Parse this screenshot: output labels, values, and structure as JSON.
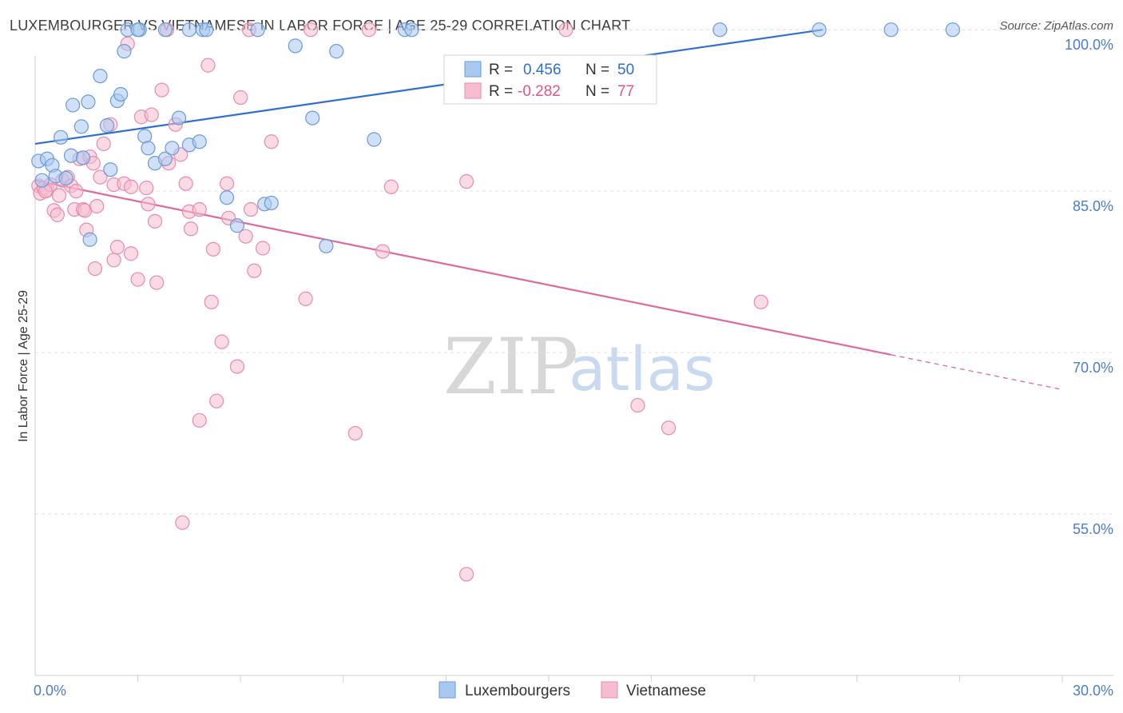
{
  "header": {
    "title": "LUXEMBOURGER VS VIETNAMESE IN LABOR FORCE | AGE 25-29 CORRELATION CHART",
    "source": "Source: ZipAtlas.com"
  },
  "watermark": {
    "zip": "ZIP",
    "atlas": "atlas"
  },
  "colors": {
    "blue_fill": "#a9c8f0",
    "blue_stroke": "#6a9ad8",
    "blue_line": "#2e6fd1",
    "pink_fill": "#f6bdd0",
    "pink_stroke": "#e98aab",
    "pink_line": "#e0689a",
    "grid": "#e3e3e3",
    "axis_tick_text": "#4a7cc9"
  },
  "legend": {
    "rows": [
      {
        "r_label": "R =",
        "r_value": "0.456",
        "n_label": "N =",
        "n_value": "50"
      },
      {
        "r_label": "R =",
        "r_value": "-0.282",
        "n_label": "N =",
        "n_value": "77"
      }
    ],
    "bottom": [
      "Luxembourgers",
      "Vietnamese"
    ]
  },
  "chart_data": {
    "type": "scatter",
    "title": "LUXEMBOURGER VS VIETNAMESE IN LABOR FORCE | AGE 25-29 CORRELATION CHART",
    "xlabel": "",
    "ylabel": "In Labor Force | Age 25-29",
    "xlim": [
      0,
      30
    ],
    "ylim": [
      40,
      101.5
    ],
    "x_tick_labels": [
      "0.0%",
      "30.0%"
    ],
    "y_ticks": [
      100,
      85,
      70,
      55
    ],
    "y_tick_labels": [
      "100.0%",
      "85.0%",
      "70.0%",
      "55.0%"
    ],
    "grid": true,
    "legend_position": "top-center",
    "series": [
      {
        "name": "Luxembourgers",
        "R": 0.456,
        "N": 50,
        "trend": {
          "x": [
            0,
            23
          ],
          "y": [
            89.4,
            100
          ]
        },
        "points": [
          [
            0.1,
            87.8
          ],
          [
            0.2,
            86.0
          ],
          [
            0.35,
            88.0
          ],
          [
            0.5,
            87.4
          ],
          [
            0.6,
            86.4
          ],
          [
            0.75,
            90.0
          ],
          [
            0.9,
            86.2
          ],
          [
            1.05,
            88.3
          ],
          [
            1.1,
            93.0
          ],
          [
            1.35,
            91.0
          ],
          [
            1.4,
            88.1
          ],
          [
            1.55,
            93.3
          ],
          [
            1.6,
            80.5
          ],
          [
            1.9,
            95.7
          ],
          [
            2.1,
            91.1
          ],
          [
            2.2,
            87.0
          ],
          [
            2.4,
            93.4
          ],
          [
            2.5,
            94.0
          ],
          [
            2.6,
            98.0
          ],
          [
            2.7,
            100.0
          ],
          [
            3.05,
            100.0
          ],
          [
            3.2,
            90.1
          ],
          [
            3.3,
            89.0
          ],
          [
            3.5,
            87.6
          ],
          [
            3.8,
            88.0
          ],
          [
            3.8,
            100.0
          ],
          [
            4.0,
            89.0
          ],
          [
            4.2,
            91.8
          ],
          [
            4.5,
            89.3
          ],
          [
            4.5,
            100.0
          ],
          [
            4.8,
            89.6
          ],
          [
            4.9,
            100.0
          ],
          [
            5.0,
            100.0
          ],
          [
            5.6,
            84.4
          ],
          [
            5.9,
            81.8
          ],
          [
            6.5,
            100.0
          ],
          [
            6.7,
            83.8
          ],
          [
            6.9,
            83.9
          ],
          [
            7.6,
            98.5
          ],
          [
            8.1,
            91.8
          ],
          [
            8.5,
            79.9
          ],
          [
            8.8,
            98.0
          ],
          [
            9.9,
            89.8
          ],
          [
            10.8,
            100.0
          ],
          [
            11.0,
            100.0
          ],
          [
            20.0,
            100.0
          ],
          [
            22.9,
            100.0
          ],
          [
            25.0,
            100.0
          ],
          [
            26.8,
            100.0
          ],
          [
            3.0,
            100.0
          ]
        ]
      },
      {
        "name": "Vietnamese",
        "R": -0.282,
        "N": 77,
        "trend": {
          "x": [
            0,
            25
          ],
          "y": [
            86.0,
            69.8
          ]
        },
        "points": [
          [
            0.1,
            85.5
          ],
          [
            0.15,
            84.8
          ],
          [
            0.25,
            85.3
          ],
          [
            0.35,
            85.1
          ],
          [
            0.45,
            85.6
          ],
          [
            0.55,
            83.2
          ],
          [
            0.65,
            82.8
          ],
          [
            0.7,
            84.6
          ],
          [
            0.8,
            86.0
          ],
          [
            0.95,
            86.3
          ],
          [
            1.05,
            85.5
          ],
          [
            1.15,
            83.3
          ],
          [
            1.2,
            85.0
          ],
          [
            1.3,
            88.0
          ],
          [
            1.4,
            83.3
          ],
          [
            1.45,
            83.2
          ],
          [
            1.5,
            81.4
          ],
          [
            1.6,
            88.2
          ],
          [
            1.7,
            87.6
          ],
          [
            1.75,
            77.8
          ],
          [
            1.8,
            83.6
          ],
          [
            1.9,
            86.3
          ],
          [
            2.0,
            89.4
          ],
          [
            2.2,
            91.2
          ],
          [
            2.3,
            85.6
          ],
          [
            2.3,
            78.6
          ],
          [
            2.4,
            79.8
          ],
          [
            2.6,
            85.7
          ],
          [
            2.7,
            98.7
          ],
          [
            2.8,
            85.4
          ],
          [
            2.8,
            79.2
          ],
          [
            3.0,
            76.8
          ],
          [
            3.1,
            91.9
          ],
          [
            3.25,
            85.3
          ],
          [
            3.3,
            83.8
          ],
          [
            3.4,
            92.1
          ],
          [
            3.5,
            82.2
          ],
          [
            3.55,
            76.5
          ],
          [
            3.7,
            94.4
          ],
          [
            3.85,
            100.0
          ],
          [
            3.9,
            87.6
          ],
          [
            4.1,
            91.2
          ],
          [
            4.25,
            88.4
          ],
          [
            4.3,
            54.2
          ],
          [
            4.4,
            85.7
          ],
          [
            4.5,
            83.1
          ],
          [
            4.55,
            81.5
          ],
          [
            4.8,
            83.3
          ],
          [
            5.05,
            96.7
          ],
          [
            5.15,
            74.7
          ],
          [
            5.2,
            79.6
          ],
          [
            5.3,
            65.5
          ],
          [
            5.45,
            71.0
          ],
          [
            5.6,
            85.7
          ],
          [
            5.65,
            82.5
          ],
          [
            5.9,
            68.7
          ],
          [
            6.0,
            93.7
          ],
          [
            6.15,
            80.8
          ],
          [
            6.25,
            100.0
          ],
          [
            6.3,
            83.3
          ],
          [
            6.4,
            77.6
          ],
          [
            6.65,
            79.7
          ],
          [
            6.9,
            89.6
          ],
          [
            8.05,
            100.0
          ],
          [
            7.9,
            75.0
          ],
          [
            9.35,
            62.5
          ],
          [
            9.75,
            100.0
          ],
          [
            10.15,
            79.4
          ],
          [
            10.4,
            85.4
          ],
          [
            12.6,
            49.4
          ],
          [
            12.6,
            85.9
          ],
          [
            15.5,
            100.0
          ],
          [
            17.6,
            65.1
          ],
          [
            18.5,
            63.0
          ],
          [
            21.2,
            74.7
          ],
          [
            4.8,
            63.7
          ],
          [
            0.3,
            85.0
          ]
        ]
      }
    ]
  }
}
